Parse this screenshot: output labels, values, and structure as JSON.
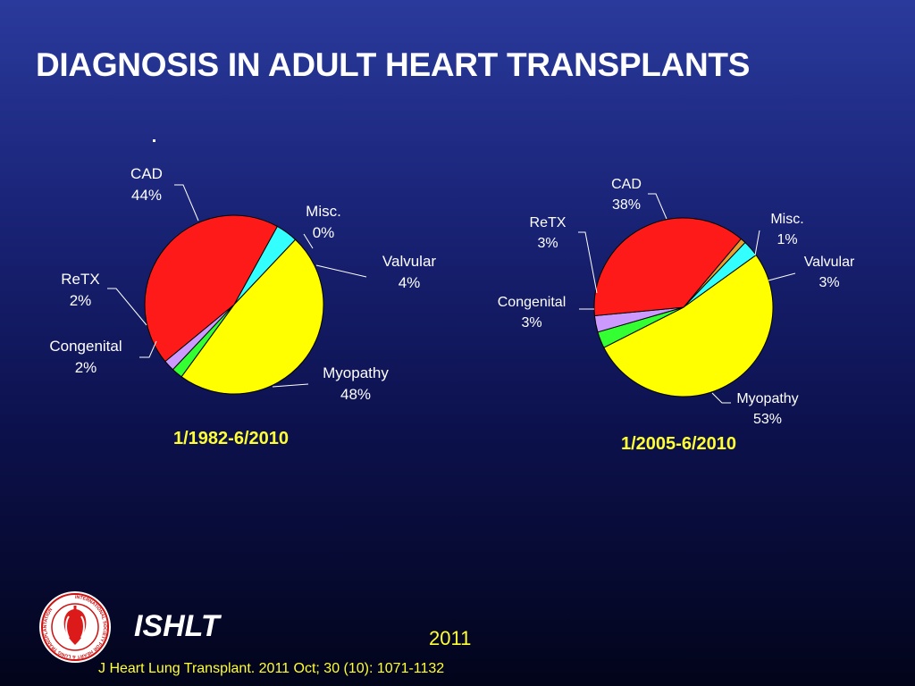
{
  "title": "DIAGNOSIS IN ADULT HEART TRANSPLANTS",
  "colors": {
    "CAD": "#ff1a1a",
    "Misc.": "#e8a030",
    "Valvular": "#33ffff",
    "Myopathy": "#ffff00",
    "Congenital": "#33ff33",
    "ReTX": "#cc99ff",
    "background": "#1a2478",
    "text": "#ffffff",
    "accent": "#ffff33"
  },
  "chart_data": [
    {
      "type": "pie",
      "title": "1/1982-6/2010",
      "slices": [
        {
          "label": "Misc.",
          "value": 0,
          "text": "0%"
        },
        {
          "label": "Valvular",
          "value": 4,
          "text": "4%"
        },
        {
          "label": "Myopathy",
          "value": 48,
          "text": "48%"
        },
        {
          "label": "Congenital",
          "value": 2,
          "text": "2%"
        },
        {
          "label": "ReTX",
          "value": 2,
          "text": "2%"
        },
        {
          "label": "CAD",
          "value": 44,
          "text": "44%"
        }
      ]
    },
    {
      "type": "pie",
      "title": "1/2005-6/2010",
      "slices": [
        {
          "label": "Misc.",
          "value": 1,
          "text": "1%"
        },
        {
          "label": "Valvular",
          "value": 3,
          "text": "3%"
        },
        {
          "label": "Myopathy",
          "value": 53,
          "text": "53%"
        },
        {
          "label": "Congenital",
          "value": 3,
          "text": "3%"
        },
        {
          "label": "ReTX",
          "value": 3,
          "text": "3%"
        },
        {
          "label": "CAD",
          "value": 38,
          "text": "38%"
        }
      ]
    }
  ],
  "footer": {
    "org": "ISHLT",
    "year": "2011",
    "citation": "J Heart Lung Transplant. 2011 Oct; 30 (10): 1071-1132",
    "logo_text": "INTERNATIONAL SOCIETY FOR HEART & LUNG TRANSPLANTATION",
    "logo_icon": "heart-lung-icon"
  }
}
